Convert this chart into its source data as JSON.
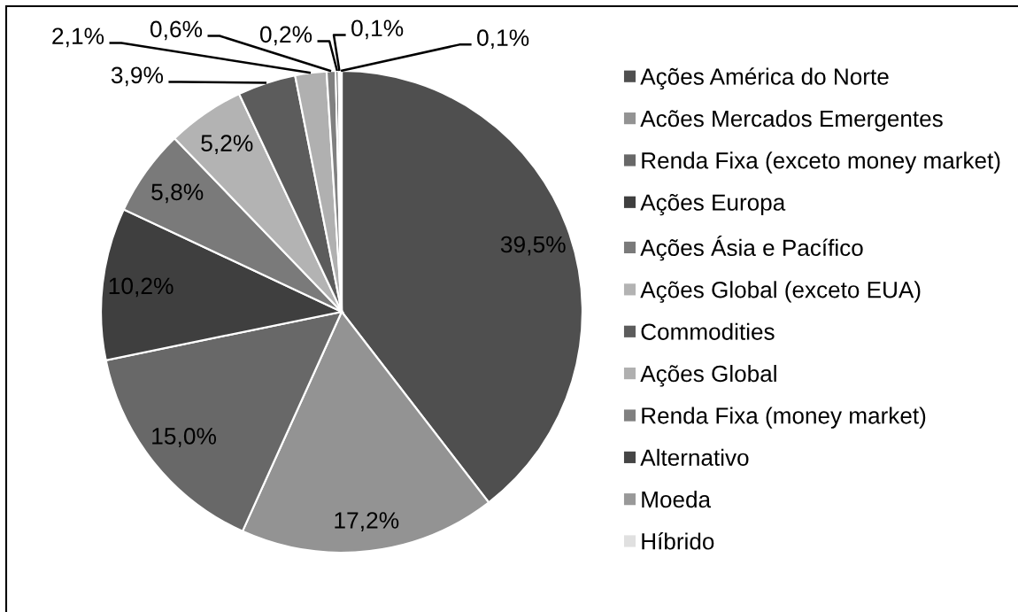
{
  "chart_data": {
    "type": "pie",
    "categories": [
      "Ações América do Norte",
      "Acões Mercados Emergentes",
      "Renda Fixa (exceto money market)",
      "Ações Europa",
      "Ações Ásia e Pacífico",
      "Ações Global (exceto EUA)",
      "Commodities",
      "Ações Global",
      "Renda Fixa (money market)",
      "Alternativo",
      "Moeda",
      "Híbrido"
    ],
    "values": [
      39.5,
      17.2,
      15.0,
      10.2,
      5.8,
      5.2,
      3.9,
      2.1,
      0.6,
      0.2,
      0.1,
      0.1
    ],
    "colors": [
      "#4f4f4f",
      "#939393",
      "#686868",
      "#3f3f3f",
      "#7a7a7a",
      "#b3b3b3",
      "#5c5c5c",
      "#b0b0b0",
      "#808080",
      "#454545",
      "#999999",
      "#e0e0e0"
    ],
    "value_labels": [
      "39,5%",
      "17,2%",
      "15,0%",
      "10,2%",
      "5,8%",
      "5,2%",
      "3,9%",
      "2,1%",
      "0,6%",
      "0,2%",
      "0,1%",
      "0,1%"
    ],
    "legend": "right"
  }
}
